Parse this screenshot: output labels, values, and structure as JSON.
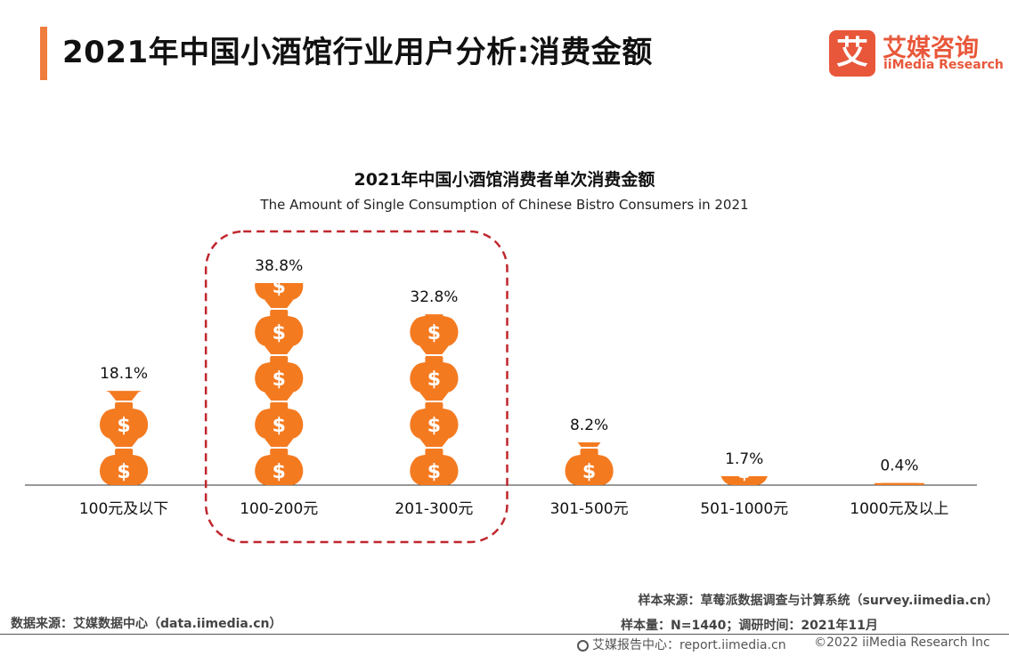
{
  "page": {
    "title": "2021年中国小酒馆行业用户分析:消费金额",
    "brand_cn": "艾媒咨询",
    "brand_en": "iiMedia Research",
    "brand_badge": "艾",
    "accent_color": "#ef7d3c"
  },
  "chart_data": {
    "type": "bar",
    "title": "2021年中国小酒馆消费者单次消费金额",
    "subtitle": "The Amount of Single Consumption of Chinese Bistro Consumers in 2021",
    "categories": [
      "100元及以下",
      "100-200元",
      "201-300元",
      "301-500元",
      "501-1000元",
      "1000元及以上"
    ],
    "values": [
      18.1,
      38.8,
      32.8,
      8.2,
      1.7,
      0.4
    ],
    "value_labels": [
      "18.1%",
      "38.8%",
      "32.8%",
      "8.2%",
      "1.7%",
      "0.4%"
    ],
    "unit": "%",
    "highlighted_categories": [
      "100-200元",
      "201-300元"
    ],
    "bar_icon": "money-bag-icon",
    "bar_color": "#f47a20",
    "highlight_color": "#c0272d"
  },
  "footer": {
    "data_source": "数据来源：艾媒数据中心（data.iimedia.cn）",
    "sample_source": "样本来源：草莓派数据调查与计算系统（survey.iimedia.cn）",
    "sample_size": "样本量：N=1440；调研时间：2021年11月",
    "report_center": "艾媒报告中心：report.iimedia.cn",
    "copyright": "©2022  iiMedia Research  Inc"
  }
}
